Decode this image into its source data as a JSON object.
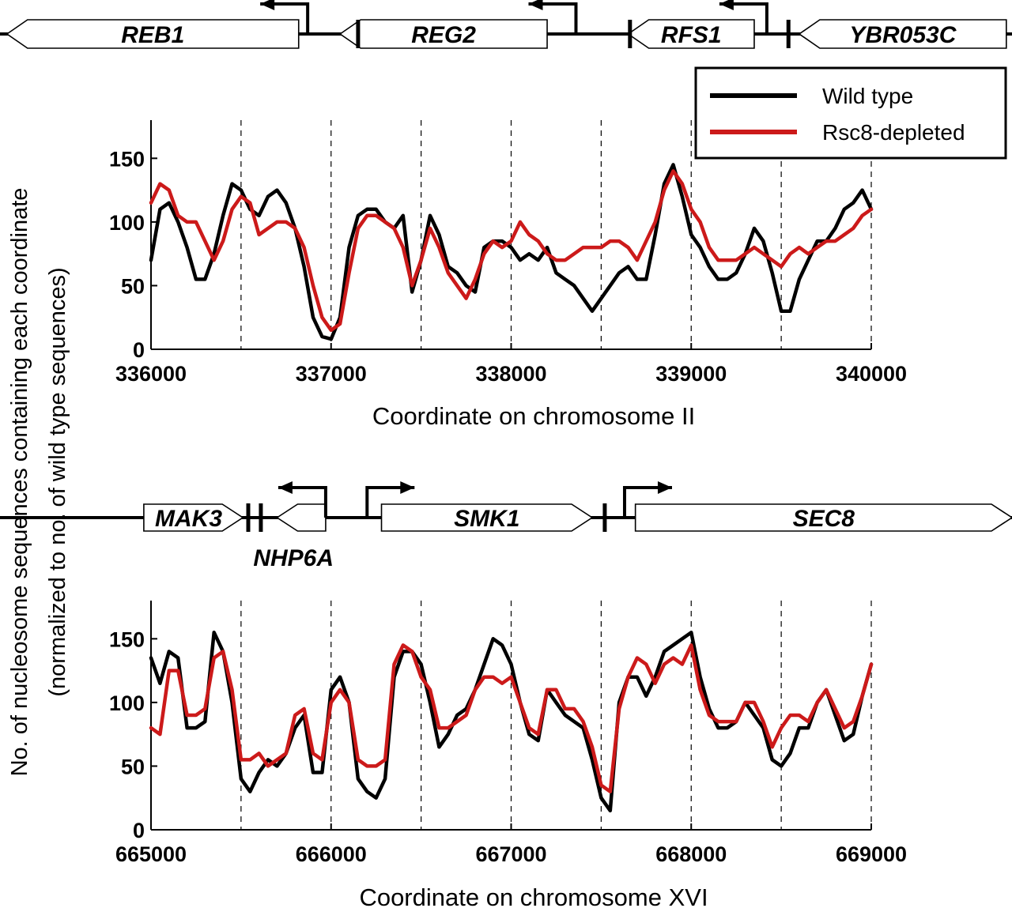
{
  "figure": {
    "ylabel_line1": "No. of nucleosome sequences containing each coordinate",
    "ylabel_line2": "(normalized to no. of wild type sequences)"
  },
  "legend": {
    "placement": "top-right",
    "entries": [
      {
        "label": "Wild type",
        "color": "#000000"
      },
      {
        "label": "Rsc8-depleted",
        "color": "#cc1a1a"
      }
    ]
  },
  "gene_tracks": [
    {
      "genes": [
        {
          "name": "REB1",
          "start": 335200,
          "end": 336820,
          "strand": "-"
        },
        {
          "name": "REG2",
          "start": 337050,
          "end": 338200,
          "strand": "-"
        },
        {
          "name": "RFS1",
          "start": 338650,
          "end": 339350,
          "strand": "-"
        },
        {
          "name": "YBR053C",
          "start": 339600,
          "end": 340750,
          "strand": "-"
        }
      ],
      "tss": [
        336870,
        338360,
        339420
      ],
      "boundaries": [
        337150,
        338660,
        339540
      ]
    },
    {
      "genes": [
        {
          "name": "MAK3",
          "start": 664960,
          "end": 665510,
          "strand": "+"
        },
        {
          "name": "NHP6A",
          "start": 665700,
          "end": 665970,
          "strand": "-"
        },
        {
          "name": "SMK1",
          "start": 666280,
          "end": 667450,
          "strand": "+"
        },
        {
          "name": "SEC8",
          "start": 667690,
          "end": 670000,
          "strand": "+"
        }
      ],
      "tss": [
        665970,
        666200,
        667630
      ],
      "boundaries": [
        665540,
        665610,
        667520
      ]
    }
  ],
  "chart_data": [
    {
      "type": "line",
      "xlabel": "Coordinate on chromosome II",
      "xlim": [
        336000,
        340000
      ],
      "ylim": [
        0,
        180
      ],
      "xticks": [
        "336000",
        "337000",
        "338000",
        "339000",
        "340000"
      ],
      "yticks": [
        "0",
        "50",
        "100",
        "150"
      ],
      "grid": "dashed vertical lines every 500",
      "x": [
        336000,
        336050,
        336100,
        336150,
        336200,
        336250,
        336300,
        336350,
        336400,
        336450,
        336500,
        336550,
        336600,
        336650,
        336700,
        336750,
        336800,
        336850,
        336900,
        336950,
        337000,
        337050,
        337100,
        337150,
        337200,
        337250,
        337300,
        337350,
        337400,
        337450,
        337500,
        337550,
        337600,
        337650,
        337700,
        337750,
        337800,
        337850,
        337900,
        337950,
        338000,
        338050,
        338100,
        338150,
        338200,
        338250,
        338300,
        338350,
        338400,
        338450,
        338500,
        338550,
        338600,
        338650,
        338700,
        338750,
        338800,
        338850,
        338900,
        338950,
        339000,
        339050,
        339100,
        339150,
        339200,
        339250,
        339300,
        339350,
        339400,
        339450,
        339500,
        339550,
        339600,
        339650,
        339700,
        339750,
        339800,
        339850,
        339900,
        339950,
        340000
      ],
      "series": [
        {
          "name": "Wild type",
          "color": "#000000",
          "values": [
            70,
            110,
            115,
            100,
            80,
            55,
            55,
            75,
            105,
            130,
            125,
            110,
            105,
            120,
            125,
            115,
            95,
            65,
            25,
            10,
            8,
            25,
            80,
            105,
            110,
            110,
            100,
            95,
            105,
            45,
            70,
            105,
            90,
            65,
            60,
            50,
            45,
            80,
            85,
            85,
            80,
            70,
            75,
            70,
            80,
            60,
            55,
            50,
            40,
            30,
            40,
            50,
            60,
            65,
            55,
            55,
            90,
            130,
            145,
            120,
            90,
            80,
            65,
            55,
            55,
            60,
            75,
            95,
            85,
            60,
            30,
            30,
            55,
            70,
            85,
            85,
            95,
            110,
            115,
            125,
            110
          ]
        },
        {
          "name": "Rsc8-depleted",
          "color": "#cc1a1a",
          "values": [
            115,
            130,
            125,
            105,
            100,
            100,
            85,
            70,
            85,
            110,
            120,
            115,
            90,
            95,
            100,
            100,
            95,
            80,
            50,
            25,
            15,
            20,
            60,
            95,
            105,
            105,
            100,
            95,
            80,
            50,
            70,
            95,
            80,
            60,
            50,
            40,
            55,
            75,
            85,
            80,
            85,
            100,
            90,
            85,
            75,
            70,
            70,
            75,
            80,
            80,
            80,
            85,
            85,
            80,
            70,
            85,
            100,
            125,
            140,
            130,
            110,
            100,
            80,
            70,
            70,
            70,
            75,
            80,
            75,
            70,
            65,
            75,
            80,
            75,
            80,
            85,
            85,
            90,
            95,
            105,
            110
          ]
        }
      ]
    },
    {
      "type": "line",
      "xlabel": "Coordinate on chromosome XVI",
      "xlim": [
        665000,
        669000
      ],
      "ylim": [
        0,
        180
      ],
      "xticks": [
        "665000",
        "666000",
        "667000",
        "668000",
        "669000"
      ],
      "yticks": [
        "0",
        "50",
        "100",
        "150"
      ],
      "grid": "dashed vertical lines every 500",
      "x": [
        665000,
        665050,
        665100,
        665150,
        665200,
        665250,
        665300,
        665350,
        665400,
        665450,
        665500,
        665550,
        665600,
        665650,
        665700,
        665750,
        665800,
        665850,
        665900,
        665950,
        666000,
        666050,
        666100,
        666150,
        666200,
        666250,
        666300,
        666350,
        666400,
        666450,
        666500,
        666550,
        666600,
        666650,
        666700,
        666750,
        666800,
        666850,
        666900,
        666950,
        667000,
        667050,
        667100,
        667150,
        667200,
        667250,
        667300,
        667350,
        667400,
        667450,
        667500,
        667550,
        667600,
        667650,
        667700,
        667750,
        667800,
        667850,
        667900,
        667950,
        668000,
        668050,
        668100,
        668150,
        668200,
        668250,
        668300,
        668350,
        668400,
        668450,
        668500,
        668550,
        668600,
        668650,
        668700,
        668750,
        668800,
        668850,
        668900,
        668950,
        669000
      ],
      "series": [
        {
          "name": "Wild type",
          "color": "#000000",
          "values": [
            135,
            115,
            140,
            135,
            80,
            80,
            85,
            155,
            140,
            100,
            40,
            30,
            45,
            55,
            50,
            60,
            80,
            90,
            45,
            45,
            110,
            120,
            100,
            40,
            30,
            25,
            40,
            120,
            140,
            140,
            130,
            100,
            65,
            75,
            90,
            95,
            110,
            130,
            150,
            145,
            130,
            100,
            75,
            70,
            110,
            100,
            90,
            85,
            80,
            55,
            25,
            15,
            100,
            120,
            120,
            105,
            120,
            140,
            145,
            150,
            155,
            120,
            95,
            80,
            80,
            85,
            100,
            90,
            80,
            55,
            50,
            60,
            80,
            80,
            100,
            110,
            90,
            70,
            75,
            105,
            130
          ]
        },
        {
          "name": "Rsc8-depleted",
          "color": "#cc1a1a",
          "values": [
            80,
            75,
            125,
            125,
            90,
            90,
            95,
            135,
            140,
            110,
            55,
            55,
            60,
            50,
            55,
            60,
            90,
            95,
            60,
            55,
            100,
            110,
            100,
            55,
            50,
            50,
            55,
            130,
            145,
            140,
            120,
            110,
            80,
            80,
            85,
            90,
            110,
            120,
            120,
            115,
            120,
            100,
            80,
            75,
            110,
            110,
            95,
            95,
            85,
            65,
            35,
            30,
            95,
            120,
            135,
            130,
            115,
            130,
            135,
            130,
            145,
            110,
            90,
            85,
            85,
            85,
            100,
            100,
            85,
            65,
            80,
            90,
            90,
            85,
            100,
            110,
            95,
            80,
            85,
            105,
            130
          ]
        }
      ]
    }
  ]
}
